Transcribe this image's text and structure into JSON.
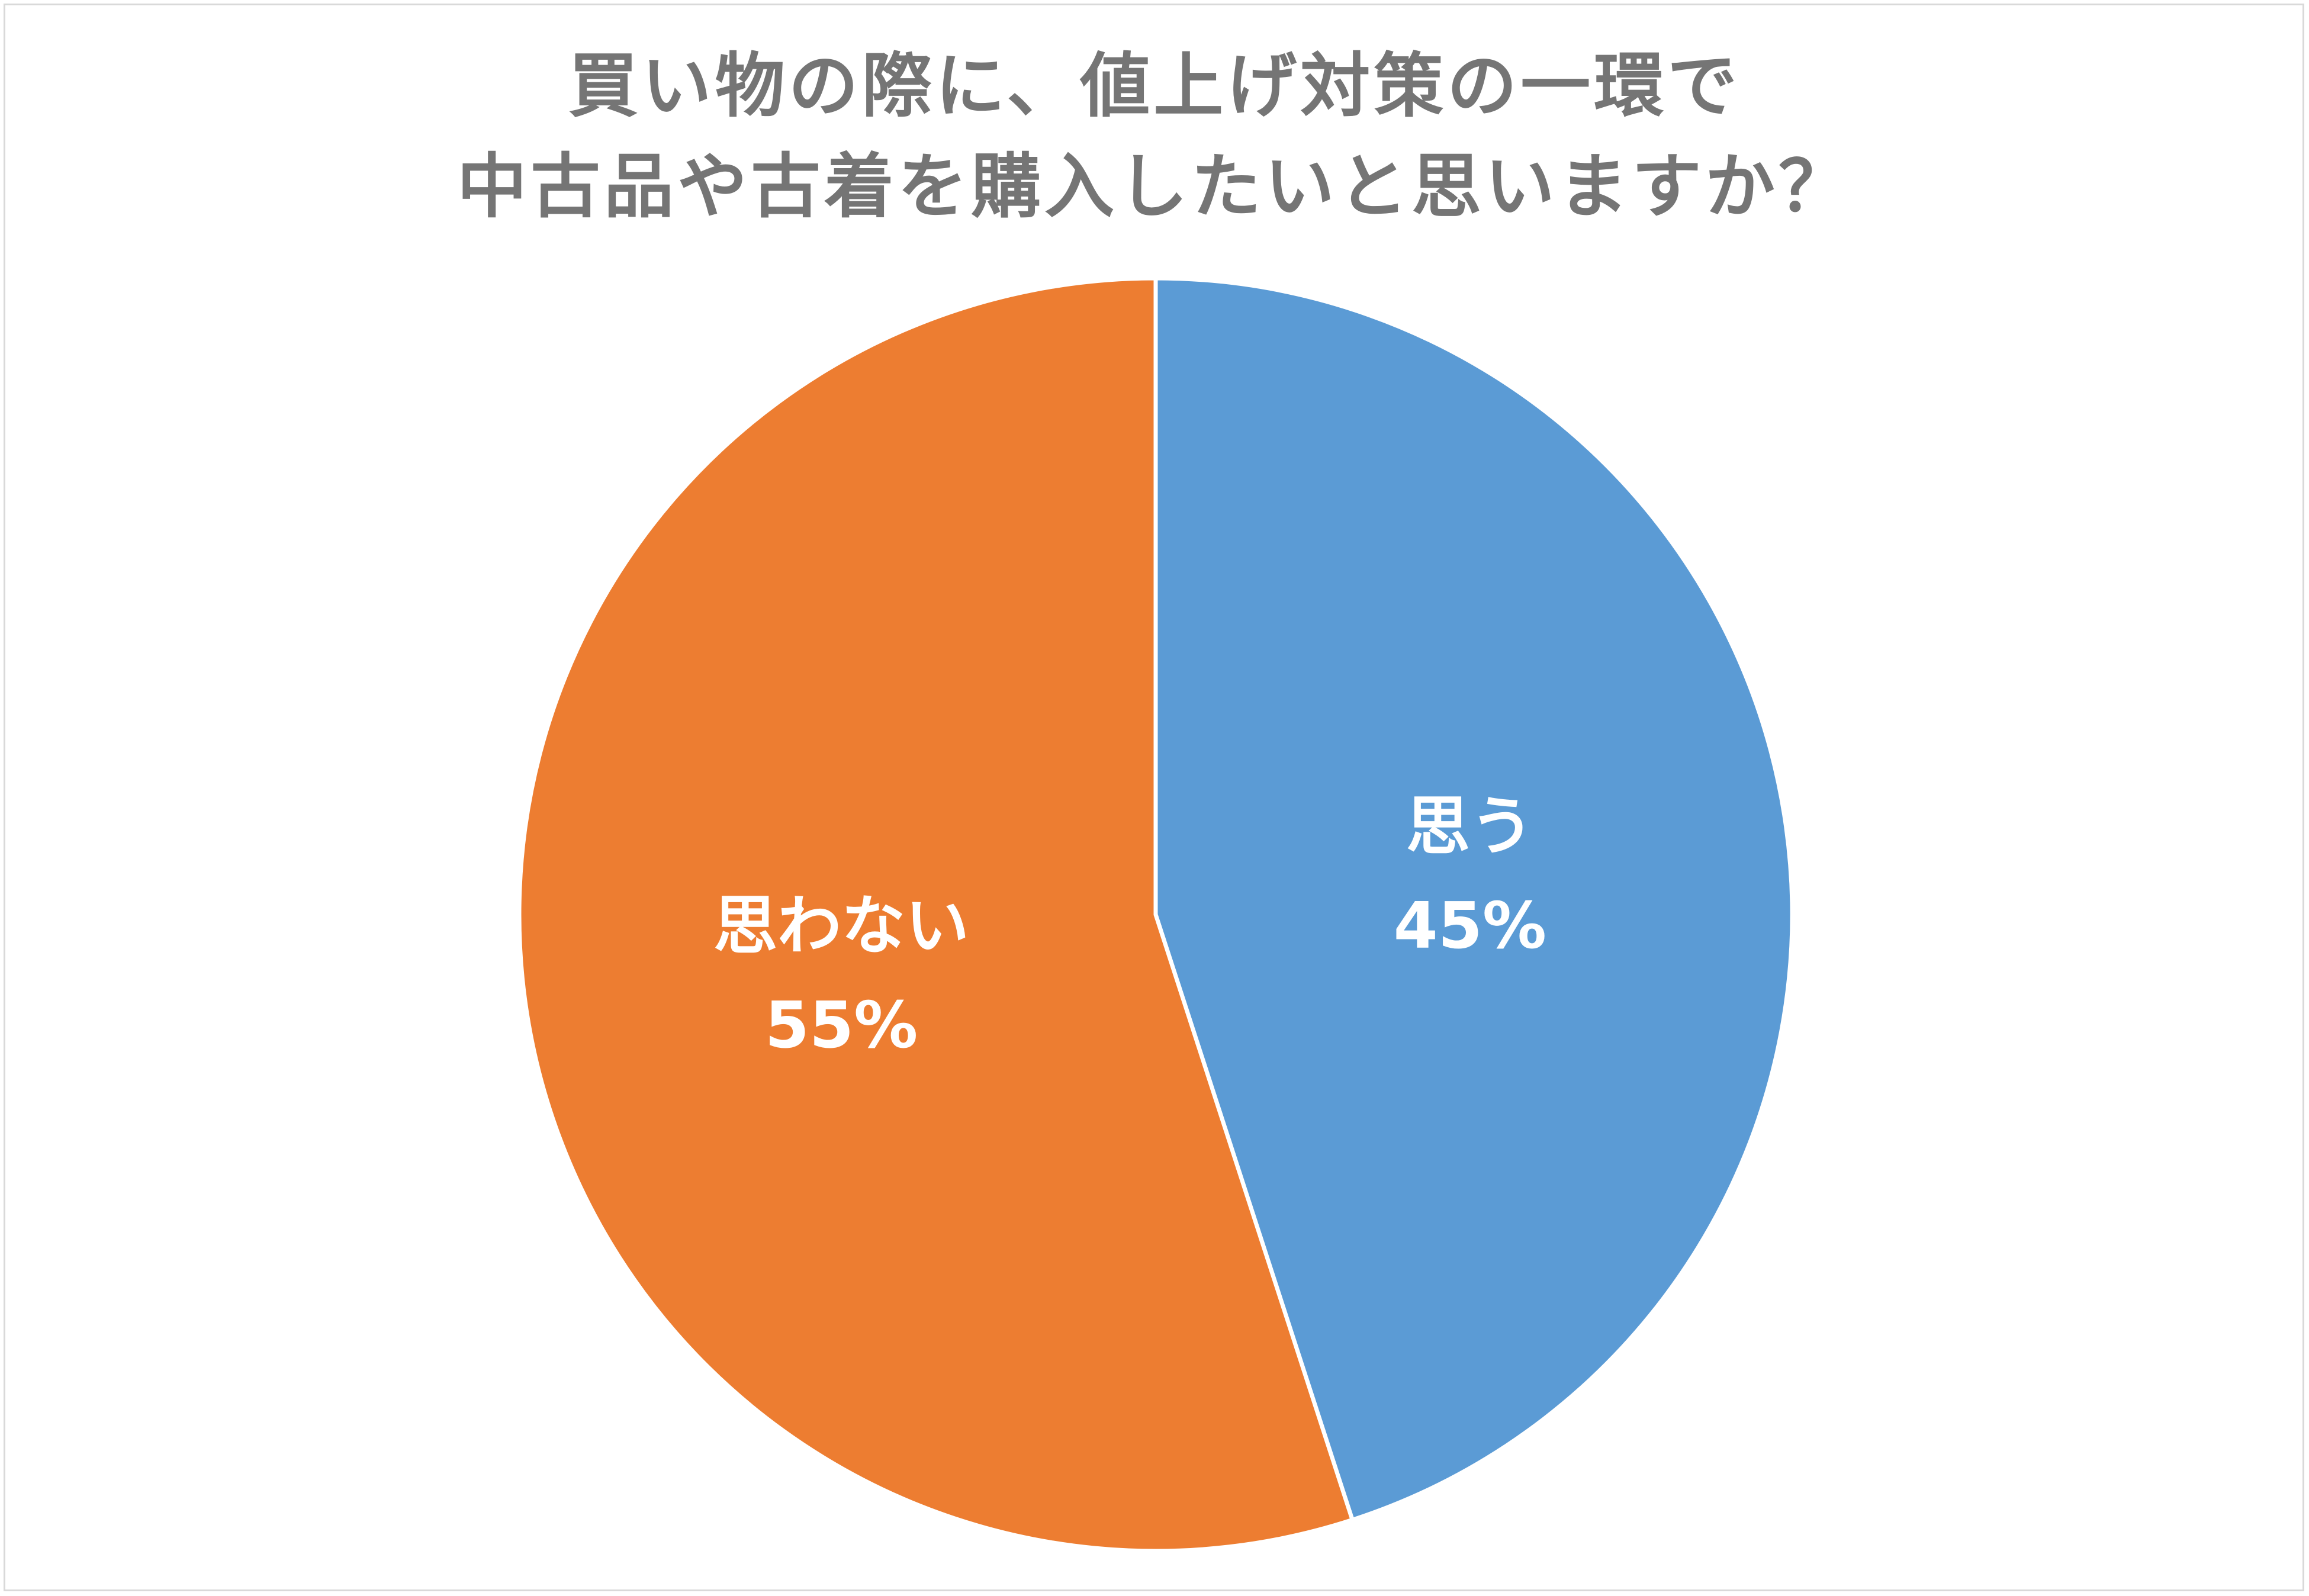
{
  "chart_data": {
    "type": "pie",
    "title_lines": [
      "買い物の際に、値上げ対策の一環で",
      "中古品や古着を購入したいと思いますか？"
    ],
    "categories": [
      "思う",
      "思わない"
    ],
    "values": [
      45,
      55
    ],
    "value_labels": [
      "45%",
      "55%"
    ],
    "colors": [
      "#5b9bd5",
      "#ed7d31"
    ],
    "start_angle": "12 o'clock",
    "direction": "clockwise",
    "legend": "none"
  }
}
